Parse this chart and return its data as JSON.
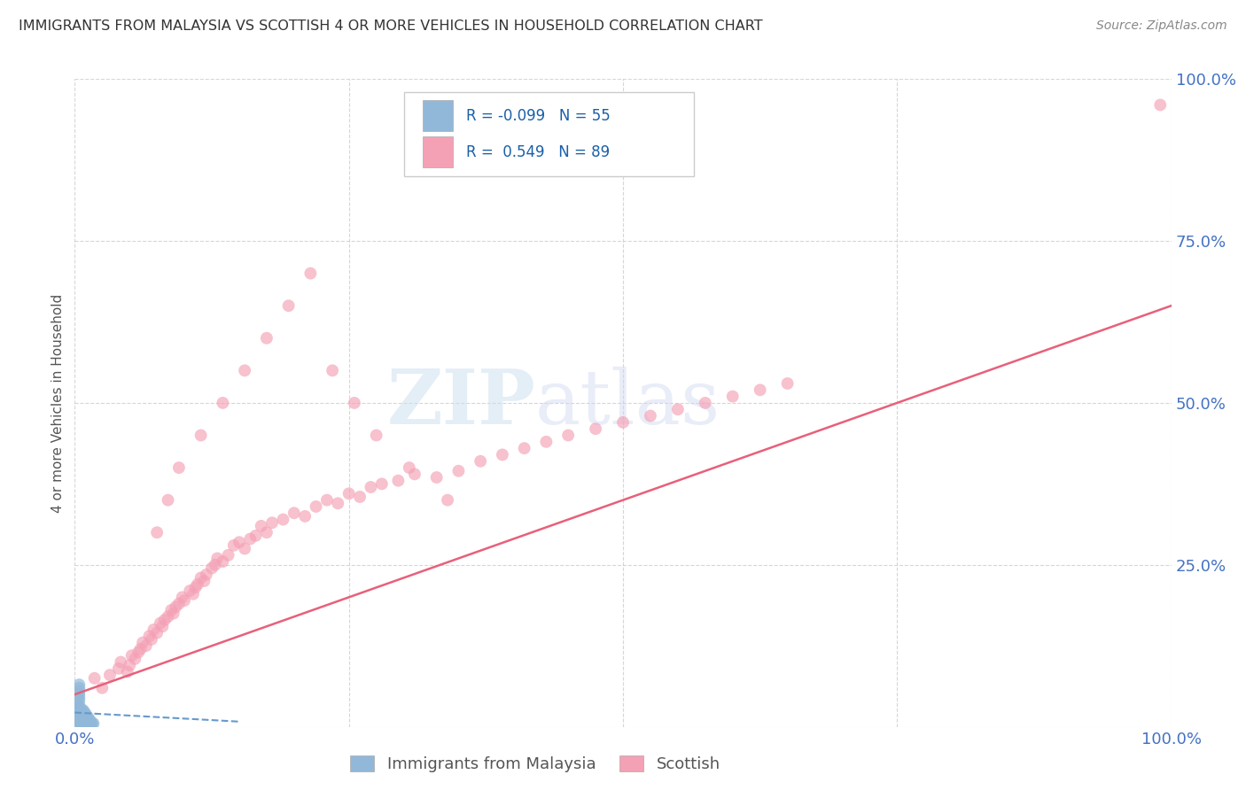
{
  "title": "IMMIGRANTS FROM MALAYSIA VS SCOTTISH 4 OR MORE VEHICLES IN HOUSEHOLD CORRELATION CHART",
  "source": "Source: ZipAtlas.com",
  "ylabel": "4 or more Vehicles in Household",
  "legend_labels": [
    "Immigrants from Malaysia",
    "Scottish"
  ],
  "blue_R": -0.099,
  "blue_N": 55,
  "pink_R": 0.549,
  "pink_N": 89,
  "blue_color": "#92b8d9",
  "pink_color": "#f4a0b5",
  "blue_line_color": "#6699cc",
  "pink_line_color": "#e8607a",
  "watermark_zip": "ZIP",
  "watermark_atlas": "atlas",
  "axis_label_color": "#4472c4",
  "grid_color": "#cccccc",
  "pink_x": [
    0.018,
    0.025,
    0.032,
    0.04,
    0.042,
    0.048,
    0.05,
    0.052,
    0.055,
    0.058,
    0.06,
    0.062,
    0.065,
    0.068,
    0.07,
    0.072,
    0.075,
    0.078,
    0.08,
    0.082,
    0.085,
    0.088,
    0.09,
    0.092,
    0.095,
    0.098,
    0.1,
    0.105,
    0.108,
    0.11,
    0.112,
    0.115,
    0.118,
    0.12,
    0.125,
    0.128,
    0.13,
    0.135,
    0.14,
    0.145,
    0.15,
    0.155,
    0.16,
    0.165,
    0.17,
    0.175,
    0.18,
    0.19,
    0.2,
    0.21,
    0.22,
    0.23,
    0.24,
    0.25,
    0.26,
    0.27,
    0.28,
    0.295,
    0.31,
    0.33,
    0.35,
    0.37,
    0.39,
    0.41,
    0.43,
    0.45,
    0.475,
    0.5,
    0.525,
    0.55,
    0.575,
    0.6,
    0.625,
    0.65,
    0.075,
    0.085,
    0.095,
    0.115,
    0.135,
    0.155,
    0.175,
    0.195,
    0.215,
    0.235,
    0.255,
    0.275,
    0.305,
    0.34,
    0.99
  ],
  "pink_y": [
    0.075,
    0.06,
    0.08,
    0.09,
    0.1,
    0.085,
    0.095,
    0.11,
    0.105,
    0.115,
    0.12,
    0.13,
    0.125,
    0.14,
    0.135,
    0.15,
    0.145,
    0.16,
    0.155,
    0.165,
    0.17,
    0.18,
    0.175,
    0.185,
    0.19,
    0.2,
    0.195,
    0.21,
    0.205,
    0.215,
    0.22,
    0.23,
    0.225,
    0.235,
    0.245,
    0.25,
    0.26,
    0.255,
    0.265,
    0.28,
    0.285,
    0.275,
    0.29,
    0.295,
    0.31,
    0.3,
    0.315,
    0.32,
    0.33,
    0.325,
    0.34,
    0.35,
    0.345,
    0.36,
    0.355,
    0.37,
    0.375,
    0.38,
    0.39,
    0.385,
    0.395,
    0.41,
    0.42,
    0.43,
    0.44,
    0.45,
    0.46,
    0.47,
    0.48,
    0.49,
    0.5,
    0.51,
    0.52,
    0.53,
    0.3,
    0.35,
    0.4,
    0.45,
    0.5,
    0.55,
    0.6,
    0.65,
    0.7,
    0.55,
    0.5,
    0.45,
    0.4,
    0.35,
    0.96
  ],
  "blue_x": [
    0.002,
    0.002,
    0.003,
    0.003,
    0.003,
    0.003,
    0.003,
    0.004,
    0.004,
    0.004,
    0.004,
    0.004,
    0.004,
    0.005,
    0.005,
    0.005,
    0.005,
    0.005,
    0.005,
    0.006,
    0.006,
    0.006,
    0.006,
    0.006,
    0.007,
    0.007,
    0.007,
    0.007,
    0.007,
    0.008,
    0.008,
    0.008,
    0.008,
    0.008,
    0.009,
    0.009,
    0.009,
    0.009,
    0.01,
    0.01,
    0.01,
    0.01,
    0.011,
    0.011,
    0.011,
    0.012,
    0.012,
    0.012,
    0.013,
    0.013,
    0.014,
    0.014,
    0.015,
    0.016,
    0.017
  ],
  "blue_y": [
    0.005,
    0.01,
    0.015,
    0.02,
    0.025,
    0.03,
    0.035,
    0.04,
    0.045,
    0.05,
    0.055,
    0.06,
    0.065,
    0.005,
    0.01,
    0.015,
    0.02,
    0.025,
    0.03,
    0.005,
    0.01,
    0.015,
    0.02,
    0.025,
    0.005,
    0.01,
    0.015,
    0.02,
    0.025,
    0.005,
    0.01,
    0.015,
    0.02,
    0.025,
    0.005,
    0.01,
    0.015,
    0.02,
    0.005,
    0.01,
    0.015,
    0.02,
    0.005,
    0.01,
    0.015,
    0.005,
    0.01,
    0.015,
    0.005,
    0.01,
    0.005,
    0.01,
    0.005,
    0.005,
    0.005
  ]
}
